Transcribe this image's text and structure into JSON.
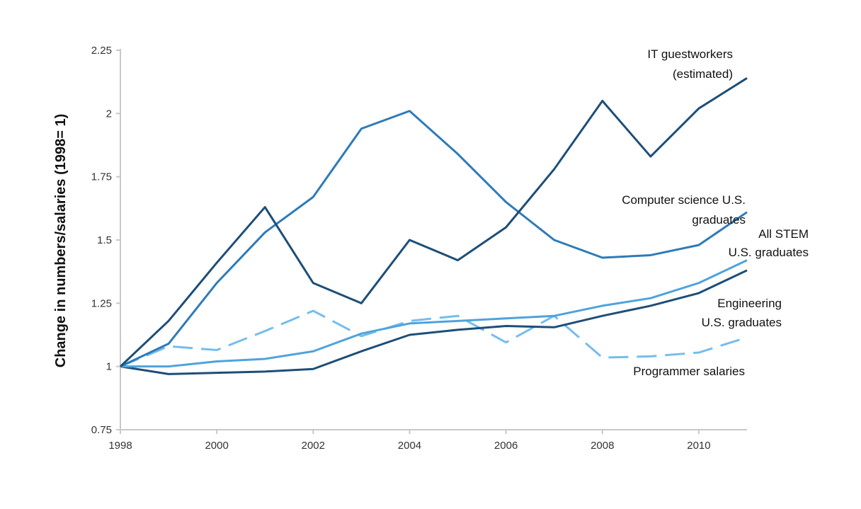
{
  "chart_data": {
    "type": "line",
    "title": "",
    "xlabel": "",
    "ylabel": "Change in numbers/salaries (1998= 1)",
    "xlim": [
      1998,
      2011
    ],
    "ylim": [
      0.75,
      2.25
    ],
    "grid": false,
    "x_ticks": [
      "1998",
      "2000",
      "2002",
      "2004",
      "2006",
      "2008",
      "2010"
    ],
    "y_ticks": [
      "0.75",
      "1",
      "1.25",
      "1.5",
      "1.75",
      "2",
      "2.25"
    ],
    "x": [
      1998,
      1999,
      2000,
      2001,
      2002,
      2003,
      2004,
      2005,
      2006,
      2007,
      2008,
      2009,
      2010,
      2011
    ],
    "series": [
      {
        "name": "IT guestworkers (estimated)",
        "label_lines": [
          "IT guestworkers",
          "(estimated)"
        ],
        "color": "#1d4e78",
        "dash": false,
        "values": [
          1.0,
          1.18,
          1.41,
          1.63,
          1.33,
          1.25,
          1.5,
          1.42,
          1.55,
          1.78,
          2.05,
          1.83,
          2.02,
          2.14
        ]
      },
      {
        "name": "Computer science U.S. graduates",
        "label_lines": [
          "Computer science U.S.",
          "graduates"
        ],
        "color": "#2d7bb8",
        "dash": false,
        "values": [
          1.0,
          1.09,
          1.33,
          1.53,
          1.67,
          1.94,
          2.01,
          1.84,
          1.65,
          1.5,
          1.43,
          1.44,
          1.48,
          1.61
        ]
      },
      {
        "name": "All STEM U.S. graduates",
        "label_lines": [
          "All STEM",
          "U.S. graduates"
        ],
        "color": "#4ea3dc",
        "dash": false,
        "values": [
          1.0,
          1.0,
          1.02,
          1.03,
          1.06,
          1.13,
          1.17,
          1.18,
          1.19,
          1.2,
          1.24,
          1.27,
          1.33,
          1.42
        ]
      },
      {
        "name": "Engineering U.S. graduates",
        "label_lines": [
          "Engineering",
          "U.S. graduates"
        ],
        "color": "#1d4e78",
        "dash": false,
        "values": [
          1.0,
          0.97,
          0.975,
          0.98,
          0.99,
          1.06,
          1.125,
          1.145,
          1.16,
          1.155,
          1.2,
          1.24,
          1.29,
          1.38
        ]
      },
      {
        "name": "Programmer salaries",
        "label_lines": [
          "Programmer  salaries"
        ],
        "color": "#74bdee",
        "dash": true,
        "values": [
          1.0,
          1.08,
          1.065,
          1.14,
          1.22,
          1.12,
          1.18,
          1.2,
          1.095,
          1.2,
          1.035,
          1.04,
          1.055,
          1.115
        ]
      }
    ]
  }
}
